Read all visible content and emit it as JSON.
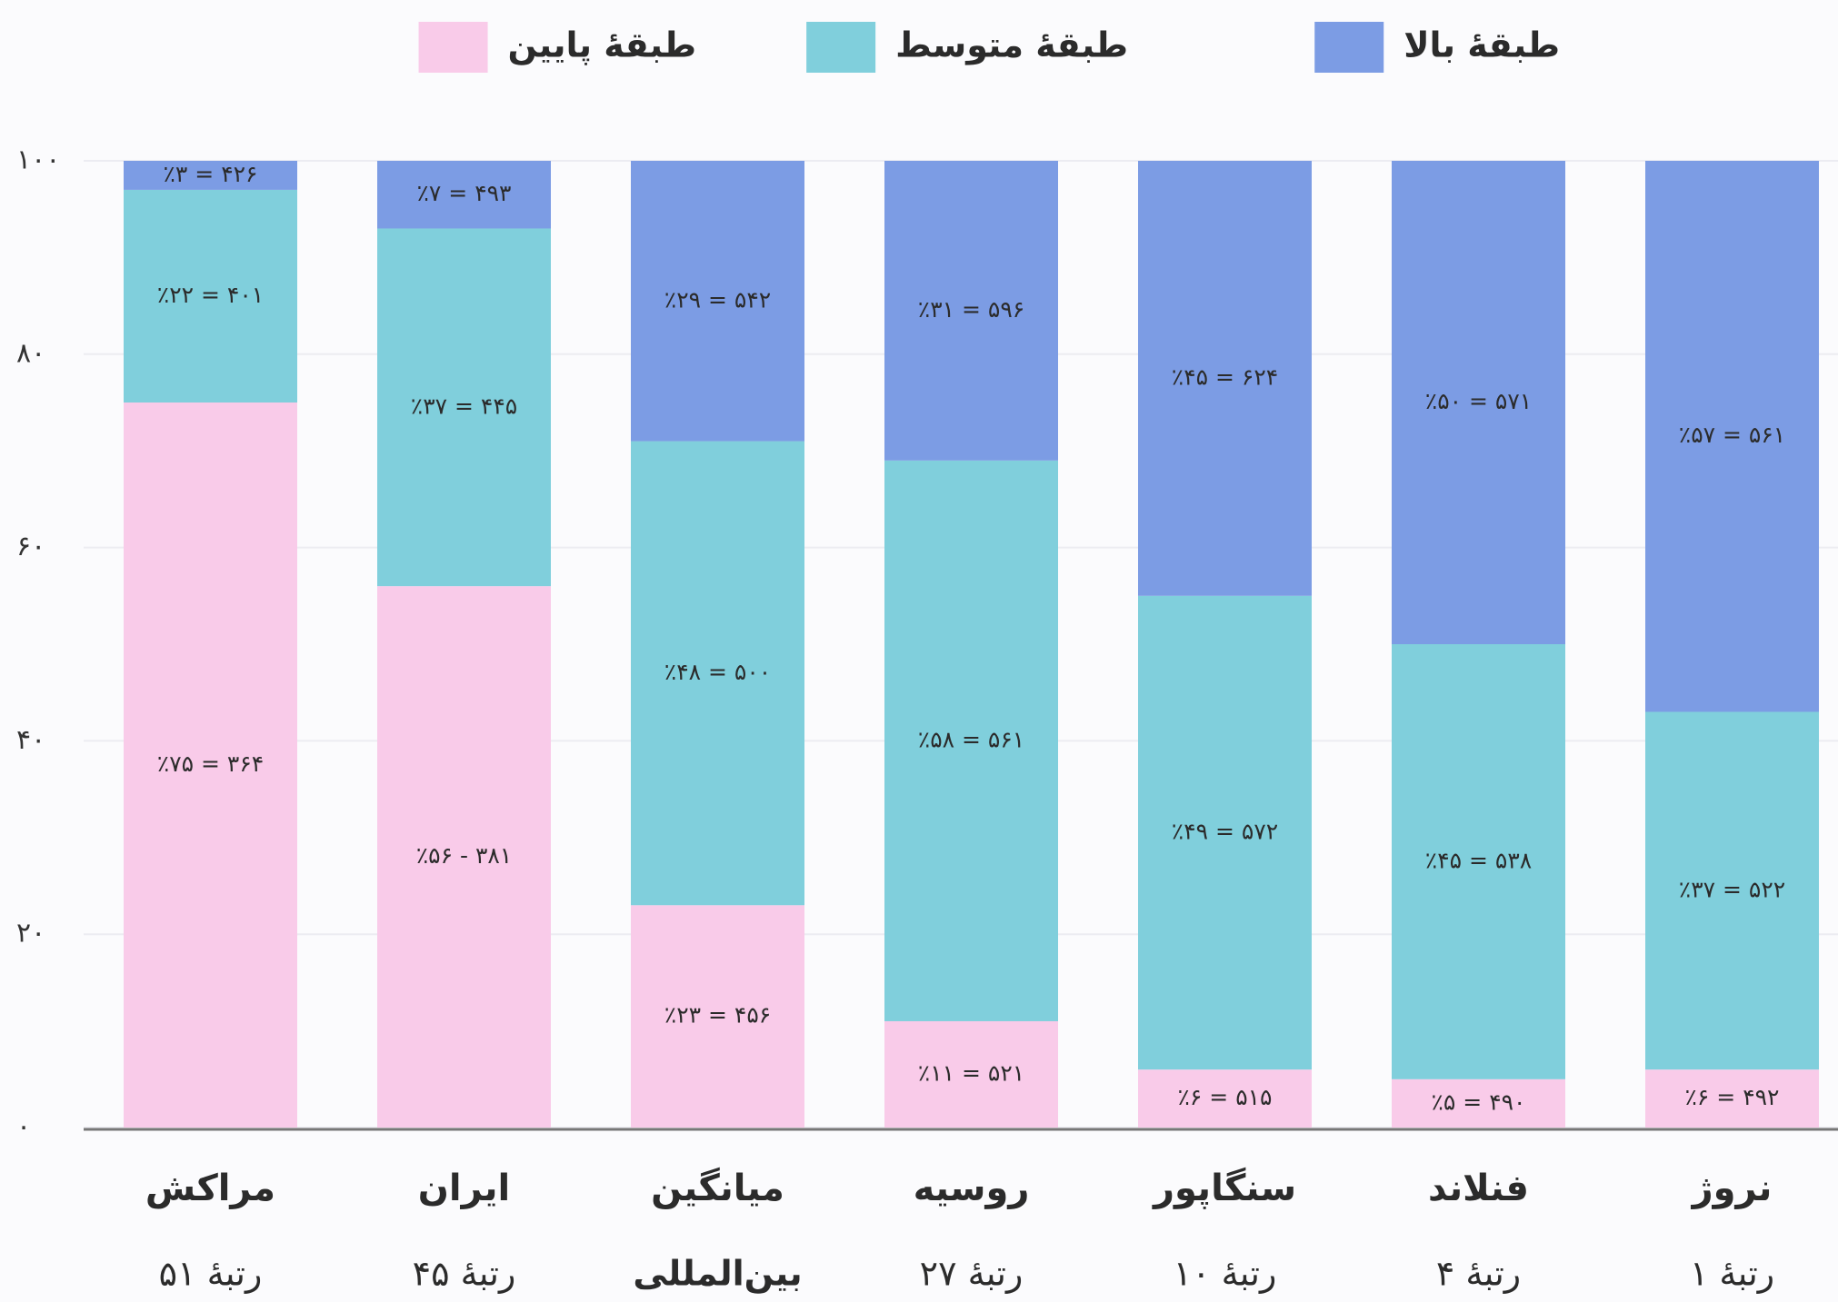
{
  "chart_data": {
    "type": "stacked_bar",
    "categories": [
      "مراکش",
      "ایران",
      "میانگین",
      "روسیه",
      "سنگاپور",
      "فنلاند",
      "نروژ"
    ],
    "category_sublabels": [
      "رتبهٔ ۵۱",
      "رتبهٔ ۴۵",
      "بین‌المللی",
      "رتبهٔ ۲۷",
      "رتبهٔ ۱۰",
      "رتبهٔ ۴",
      "رتبهٔ ۱"
    ],
    "sublabel_bold": [
      false,
      false,
      true,
      false,
      false,
      false,
      false
    ],
    "series": [
      {
        "name": "طبقهٔ پایین",
        "color": "#f9cbe9",
        "values": [
          75,
          56,
          23,
          11,
          6,
          5,
          6
        ],
        "value_labels": [
          "٪۷۵ = ۳۶۴",
          "٪۵۶ - ۳۸۱",
          "٪۲۳ = ۴۵۶",
          "٪۱۱ = ۵۲۱",
          "٪۶ = ۵۱۵",
          "٪۵ = ۴۹۰",
          "٪۶ = ۴۹۲"
        ]
      },
      {
        "name": "طبقهٔ متوسط",
        "color": "#80cfdc",
        "values": [
          22,
          37,
          48,
          58,
          49,
          45,
          37
        ],
        "value_labels": [
          "٪۲۲ = ۴۰۱",
          "٪۳۷ = ۴۴۵",
          "٪۴۸ = ۵۰۰",
          "٪۵۸ = ۵۶۱",
          "٪۴۹ = ۵۷۲",
          "٪۴۵ = ۵۳۸",
          "٪۳۷ = ۵۲۲"
        ]
      },
      {
        "name": "طبقهٔ بالا",
        "color": "#7c9ce4",
        "values": [
          3,
          7,
          29,
          31,
          45,
          50,
          57
        ],
        "value_labels": [
          "٪۳ = ۴۲۶",
          "٪۷ = ۴۹۳",
          "٪۲۹ = ۵۴۲",
          "٪۳۱ = ۵۹۶",
          "٪۴۵ = ۶۲۴",
          "٪۵۰ = ۵۷۱",
          "٪۵۷ = ۵۶۱"
        ]
      }
    ],
    "ylim": [
      0,
      100
    ],
    "yticks": [
      {
        "value": 0,
        "label": "۰"
      },
      {
        "value": 20,
        "label": "۲۰"
      },
      {
        "value": 40,
        "label": "۴۰"
      },
      {
        "value": 60,
        "label": "۶۰"
      },
      {
        "value": 80,
        "label": "۸۰"
      },
      {
        "value": 100,
        "label": "۱۰۰"
      }
    ],
    "grid": true
  }
}
